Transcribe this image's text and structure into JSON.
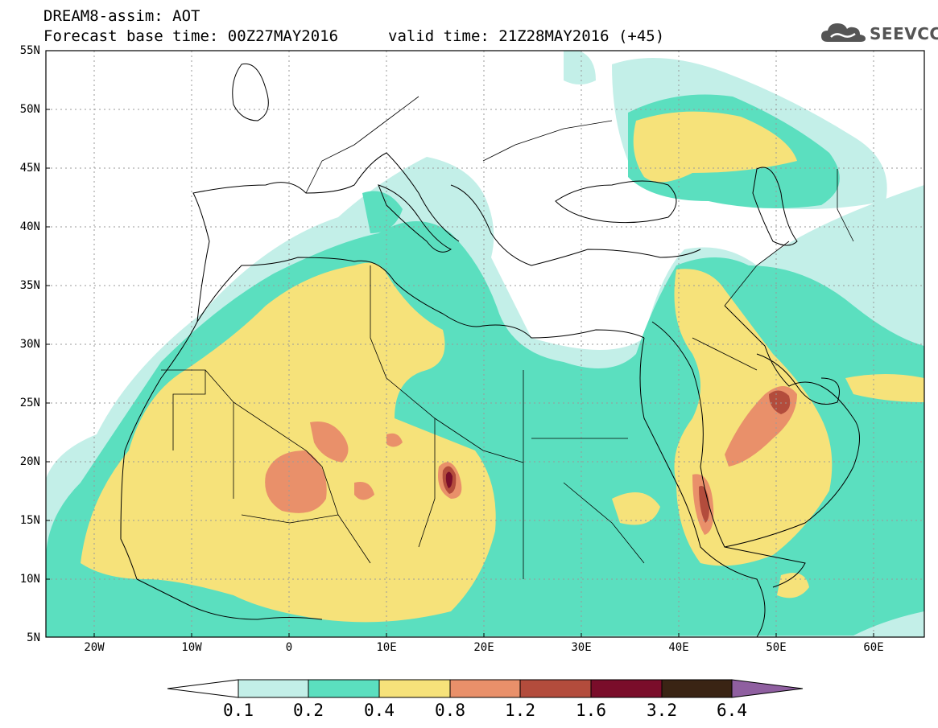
{
  "title": {
    "line1": "DREAM8-assim: AOT",
    "line2": "Forecast base time: 00Z27MAY2016",
    "valid": "valid time: 21Z28MAY2016 (+45)"
  },
  "logo": {
    "text": "SEEVCCC",
    "icon": "cloud-icon"
  },
  "axes": {
    "lat_labels": [
      "55N",
      "50N",
      "45N",
      "40N",
      "35N",
      "30N",
      "25N",
      "20N",
      "15N",
      "10N",
      "5N"
    ],
    "lon_labels": [
      "20W",
      "10W",
      "0",
      "10E",
      "20E",
      "30E",
      "40E",
      "50E",
      "60E"
    ]
  },
  "legend": {
    "labels": [
      "0.1",
      "0.2",
      "0.4",
      "0.8",
      "1.2",
      "1.6",
      "3.2",
      "6.4"
    ],
    "colors": [
      "#ffffff",
      "#c3efe8",
      "#5bdfbf",
      "#f6e27a",
      "#e9906a",
      "#b34c3c",
      "#7a0d2a",
      "#3a2414",
      "#8f5fa0"
    ]
  },
  "palette": {
    "c01": "#c3efe8",
    "c02": "#5bdfbf",
    "c04": "#f6e27a",
    "c08": "#e9906a",
    "c12": "#b34c3c",
    "c16": "#7a0d2a"
  }
}
